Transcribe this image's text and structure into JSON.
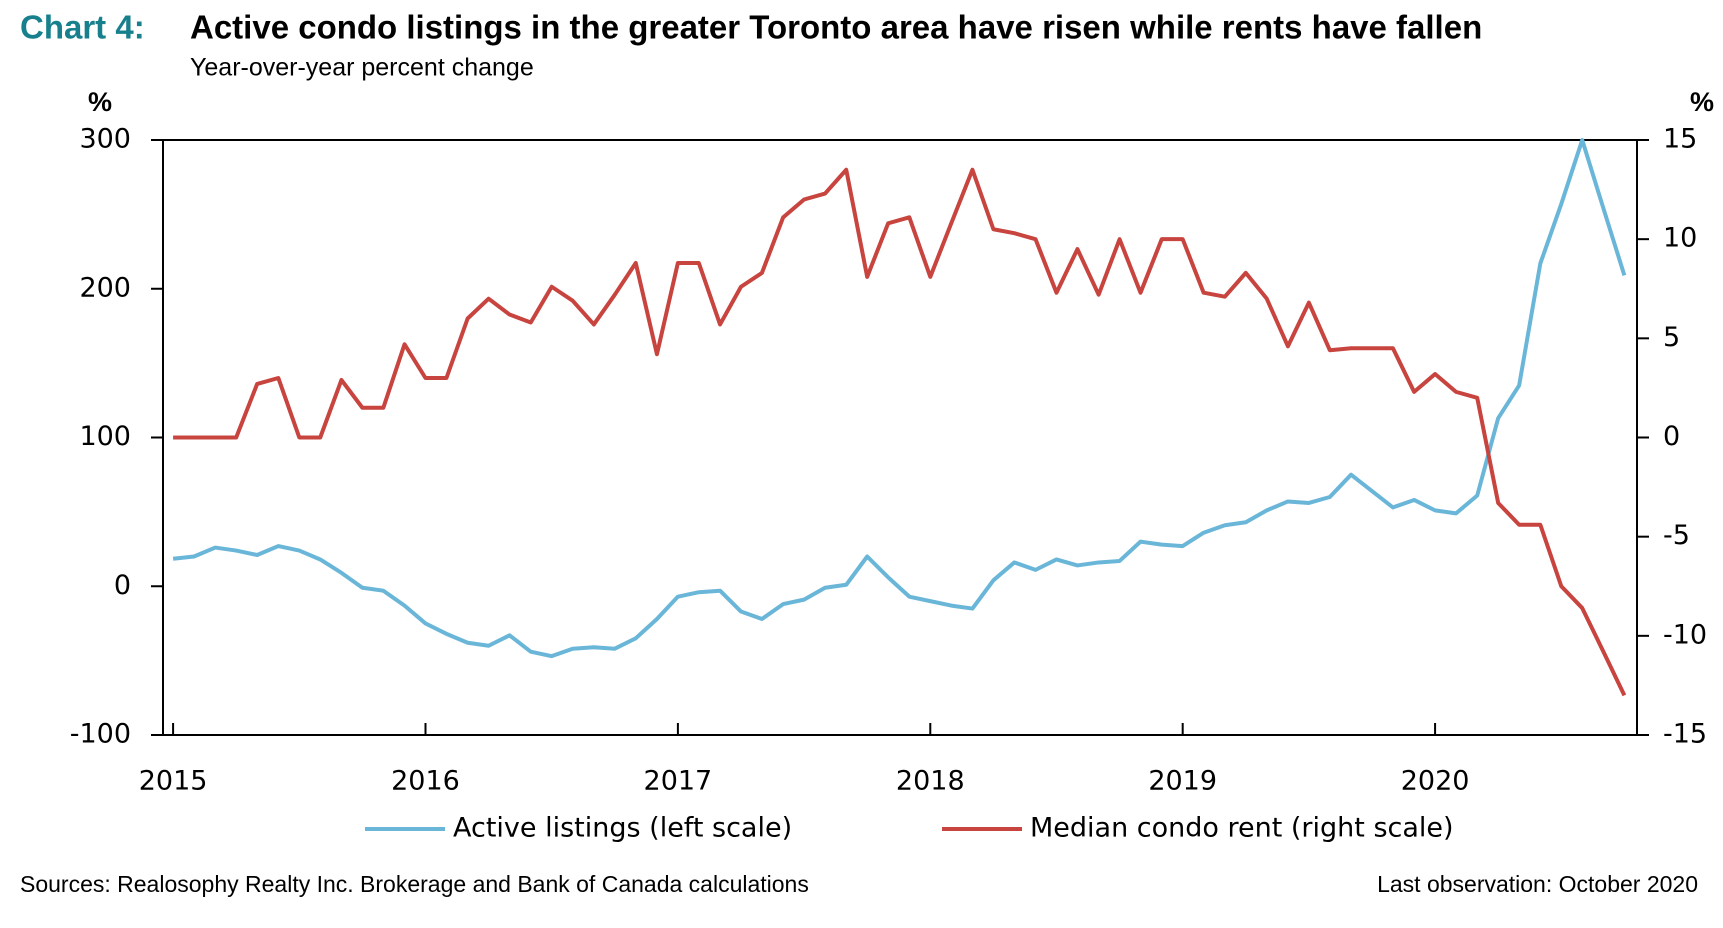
{
  "chart_data": {
    "type": "line",
    "chart_label": "Chart 4:",
    "title": "Active condo listings in the greater Toronto area have risen while rents have fallen",
    "subtitle": "Year-over-year percent change",
    "y_label": "%",
    "y2_label": "%",
    "x": [
      2015,
      2015.083,
      2015.167,
      2015.25,
      2015.333,
      2015.417,
      2015.5,
      2015.583,
      2015.667,
      2015.75,
      2015.833,
      2015.917,
      2016,
      2016.083,
      2016.167,
      2016.25,
      2016.333,
      2016.417,
      2016.5,
      2016.583,
      2016.667,
      2016.75,
      2016.833,
      2016.917,
      2017,
      2017.083,
      2017.167,
      2017.25,
      2017.333,
      2017.417,
      2017.5,
      2017.583,
      2017.667,
      2017.75,
      2017.833,
      2017.917,
      2018,
      2018.083,
      2018.167,
      2018.25,
      2018.333,
      2018.417,
      2018.5,
      2018.583,
      2018.667,
      2018.75,
      2018.833,
      2018.917,
      2019,
      2019.083,
      2019.167,
      2019.25,
      2019.333,
      2019.417,
      2019.5,
      2019.583,
      2019.667,
      2019.75,
      2019.833,
      2019.917,
      2020,
      2020.083,
      2020.167,
      2020.25,
      2020.333,
      2020.417,
      2020.5,
      2020.583,
      2020.667,
      2020.75
    ],
    "series": [
      {
        "name": "Active listings (left scale)",
        "color": "#6ab6d8",
        "axis": "y",
        "values": [
          18.5,
          20,
          26,
          24,
          21,
          27,
          24,
          18,
          9,
          -1,
          -3,
          -13,
          -25,
          -32,
          -38,
          -40,
          -33,
          -44,
          -47,
          -42,
          -41,
          -42,
          -35,
          -22,
          -7,
          -4,
          -3,
          -17,
          -22,
          -12,
          -9,
          -1,
          1,
          20,
          6,
          -7,
          -10,
          -13,
          -15,
          4,
          16,
          11,
          18,
          14,
          16,
          17,
          30,
          28,
          27,
          36,
          41,
          43,
          51,
          57,
          56,
          60,
          75,
          64,
          53,
          58,
          51,
          49,
          61,
          113,
          135,
          217,
          257,
          300,
          254,
          209
        ]
      },
      {
        "name": "Median condo rent (right scale)",
        "color": "#c8443f",
        "axis": "y2",
        "values": [
          0,
          0,
          0,
          0,
          2.7,
          3,
          0,
          0,
          2.9,
          1.5,
          1.5,
          4.7,
          3,
          3,
          6,
          7,
          6.2,
          5.8,
          7.6,
          6.9,
          5.7,
          7.2,
          8.8,
          4.2,
          8.8,
          8.8,
          5.7,
          7.6,
          8.3,
          11.1,
          12,
          12.3,
          13.5,
          8.1,
          10.8,
          11.1,
          8.1,
          10.8,
          13.5,
          10.5,
          10.3,
          10,
          7.3,
          9.5,
          7.2,
          10,
          7.3,
          10,
          10,
          7.3,
          7.1,
          8.3,
          7,
          4.6,
          6.8,
          4.4,
          4.5,
          4.5,
          4.5,
          2.3,
          3.2,
          2.3,
          2,
          -3.3,
          -4.4,
          -4.4,
          -7.5,
          -8.6,
          -10.8,
          -13
        ]
      }
    ],
    "xlim": [
      2014.96,
      2020.8
    ],
    "xticks": [
      2015,
      2016,
      2017,
      2018,
      2019,
      2020
    ],
    "ylim": [
      -100,
      300
    ],
    "yticks": [
      -100,
      0,
      100,
      200,
      300
    ],
    "y2lim": [
      -15,
      15
    ],
    "y2ticks": [
      -15,
      -10,
      -5,
      0,
      5,
      10,
      15
    ],
    "legend": "bottom",
    "source": "Sources: Realosophy Realty Inc. Brokerage and Bank of Canada calculations",
    "last_observation": "Last observation: October 2020"
  }
}
